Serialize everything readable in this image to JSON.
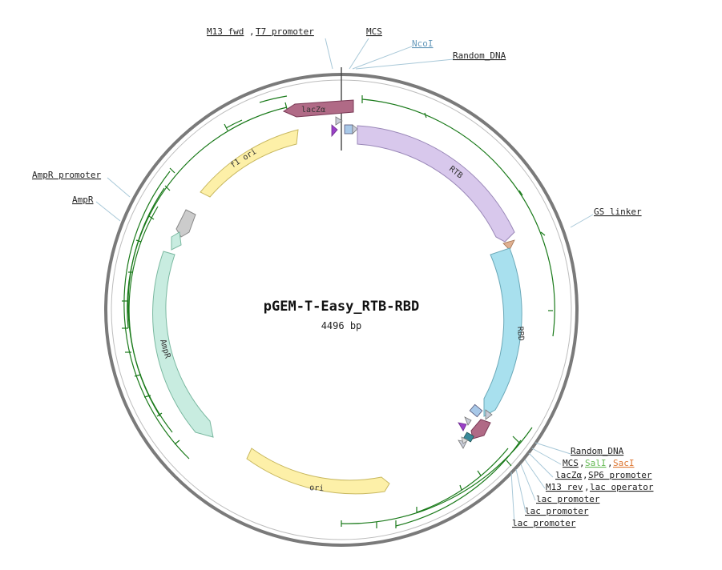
{
  "plasmid": {
    "name": "pGEM-T-Easy_RTB-RBD",
    "size_label": "4496 bp"
  },
  "colors": {
    "backbone": "#7a7a7a",
    "orf_track": "#1a7a1a",
    "lacz": "#b06a86",
    "rtb": "#d8c8ec",
    "rbd": "#a8e0ee",
    "f1_ori": "#fdf0a8",
    "ori": "#fdf0a8",
    "ampr": "#c8ece0",
    "ampr_promoter": "#cccccc",
    "gs_linker": "#e0b090",
    "random_dna": "#a8c8e8",
    "primer": "#c8ccd8",
    "sall": "#66bb55",
    "saci": "#dd7733",
    "ncoi": "#6699bb"
  },
  "features": {
    "lacz_top": "lacZα",
    "rtb": "RTB",
    "rbd": "RBD",
    "f1_ori": "f1 ori",
    "ori": "ori",
    "ampr": "AmpR"
  },
  "labels": {
    "m13_fwd": "M13 fwd",
    "t7_promoter": "T7 promoter",
    "mcs_top": "MCS",
    "ncoi": "NcoI",
    "random_dna_top": "Random_DNA",
    "gs_linker": "GS linker",
    "ampr_promoter": "AmpR promoter",
    "ampr": "AmpR",
    "random_dna_bottom": "Random_DNA",
    "mcs_bottom": "MCS",
    "sall": "SalI",
    "saci": "SacI",
    "lacz_bottom": "lacZα",
    "sp6_promoter": "SP6 promoter",
    "m13_rev": "M13 rev",
    "lac_operator": "lac operator",
    "lac_promoter_1": "lac promoter",
    "lac_promoter_2": "lac promoter",
    "lac_promoter_3": "lac promoter"
  },
  "separators": {
    "comma": ","
  }
}
